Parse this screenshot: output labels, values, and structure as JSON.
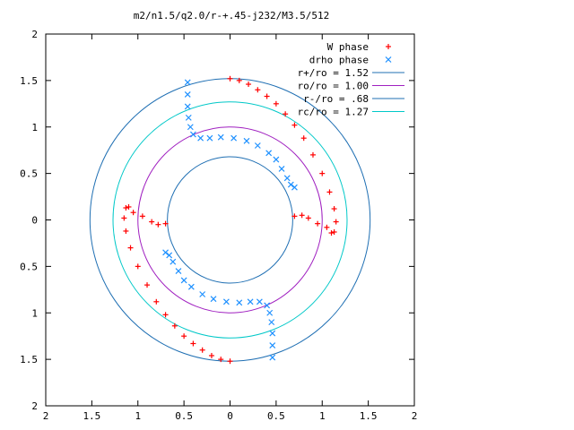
{
  "chart_data": {
    "type": "scatter",
    "title": "m2/n1.5/q2.0/r-+.45-j232/M3.5/512",
    "xlim": [
      -2,
      2
    ],
    "ylim": [
      -2,
      2
    ],
    "xticks": [
      -2,
      -1.5,
      -1,
      -0.5,
      0,
      0.5,
      1,
      1.5,
      2
    ],
    "yticks": [
      -2,
      -1.5,
      -1,
      -0.5,
      0,
      0.5,
      1,
      1.5,
      2
    ],
    "xtick_labels": [
      "2",
      "1.5",
      "1",
      "0.5",
      "0",
      "0.5",
      "1",
      "1.5",
      "2"
    ],
    "ytick_labels": [
      "2",
      "1.5",
      "1",
      "0.5",
      "0",
      "0.5",
      "1",
      "1.5",
      "2"
    ],
    "grid": false,
    "legend_position": "top-right",
    "series": [
      {
        "name": "W phase",
        "marker": "plus",
        "color": "#ff0000",
        "points": [
          [
            0,
            1.52
          ],
          [
            0.1,
            1.5
          ],
          [
            0.2,
            1.46
          ],
          [
            0.3,
            1.4
          ],
          [
            0.4,
            1.33
          ],
          [
            0.5,
            1.25
          ],
          [
            0.6,
            1.14
          ],
          [
            0.7,
            1.02
          ],
          [
            0.8,
            0.88
          ],
          [
            0.9,
            0.7
          ],
          [
            1.0,
            0.5
          ],
          [
            1.08,
            0.3
          ],
          [
            1.13,
            0.12
          ],
          [
            1.15,
            -0.02
          ],
          [
            1.13,
            -0.13
          ],
          [
            1.1,
            -0.14
          ],
          [
            1.05,
            -0.08
          ],
          [
            0.95,
            -0.04
          ],
          [
            0.85,
            0.02
          ],
          [
            0.78,
            0.05
          ],
          [
            0.7,
            0.04
          ],
          [
            0,
            -1.52
          ],
          [
            -0.1,
            -1.5
          ],
          [
            -0.2,
            -1.46
          ],
          [
            -0.3,
            -1.4
          ],
          [
            -0.4,
            -1.33
          ],
          [
            -0.5,
            -1.25
          ],
          [
            -0.6,
            -1.14
          ],
          [
            -0.7,
            -1.02
          ],
          [
            -0.8,
            -0.88
          ],
          [
            -0.9,
            -0.7
          ],
          [
            -1.0,
            -0.5
          ],
          [
            -1.08,
            -0.3
          ],
          [
            -1.13,
            -0.12
          ],
          [
            -1.15,
            0.02
          ],
          [
            -1.13,
            0.13
          ],
          [
            -1.1,
            0.14
          ],
          [
            -1.05,
            0.08
          ],
          [
            -0.95,
            0.04
          ],
          [
            -0.85,
            -0.02
          ],
          [
            -0.78,
            -0.05
          ],
          [
            -0.7,
            -0.04
          ]
        ]
      },
      {
        "name": "drho phase",
        "marker": "cross",
        "color": "#1e90ff",
        "points": [
          [
            -0.46,
            1.48
          ],
          [
            -0.46,
            1.35
          ],
          [
            -0.46,
            1.22
          ],
          [
            -0.45,
            1.1
          ],
          [
            -0.43,
            1.0
          ],
          [
            -0.4,
            0.92
          ],
          [
            -0.32,
            0.88
          ],
          [
            -0.22,
            0.88
          ],
          [
            -0.1,
            0.89
          ],
          [
            0.04,
            0.88
          ],
          [
            0.18,
            0.85
          ],
          [
            0.3,
            0.8
          ],
          [
            0.42,
            0.72
          ],
          [
            0.5,
            0.65
          ],
          [
            0.56,
            0.55
          ],
          [
            0.62,
            0.45
          ],
          [
            0.66,
            0.38
          ],
          [
            0.7,
            0.35
          ],
          [
            0.46,
            -1.48
          ],
          [
            0.46,
            -1.35
          ],
          [
            0.46,
            -1.22
          ],
          [
            0.45,
            -1.1
          ],
          [
            0.43,
            -1.0
          ],
          [
            0.4,
            -0.92
          ],
          [
            0.32,
            -0.88
          ],
          [
            0.22,
            -0.88
          ],
          [
            0.1,
            -0.89
          ],
          [
            -0.04,
            -0.88
          ],
          [
            -0.18,
            -0.85
          ],
          [
            -0.3,
            -0.8
          ],
          [
            -0.42,
            -0.72
          ],
          [
            -0.5,
            -0.65
          ],
          [
            -0.56,
            -0.55
          ],
          [
            -0.62,
            -0.45
          ],
          [
            -0.66,
            -0.38
          ],
          [
            -0.7,
            -0.35
          ]
        ]
      },
      {
        "name": "r+/ro = 1.52",
        "type": "circle",
        "radius": 1.52,
        "color": "#1f6fb3"
      },
      {
        "name": "ro/ro = 1.00",
        "type": "circle",
        "radius": 1.0,
        "color": "#a020c0"
      },
      {
        "name": "r-/ro = .68",
        "type": "circle",
        "radius": 0.68,
        "color": "#1f6fb3"
      },
      {
        "name": "rc/ro = 1.27",
        "type": "circle",
        "radius": 1.27,
        "color": "#00c8c8"
      }
    ]
  }
}
